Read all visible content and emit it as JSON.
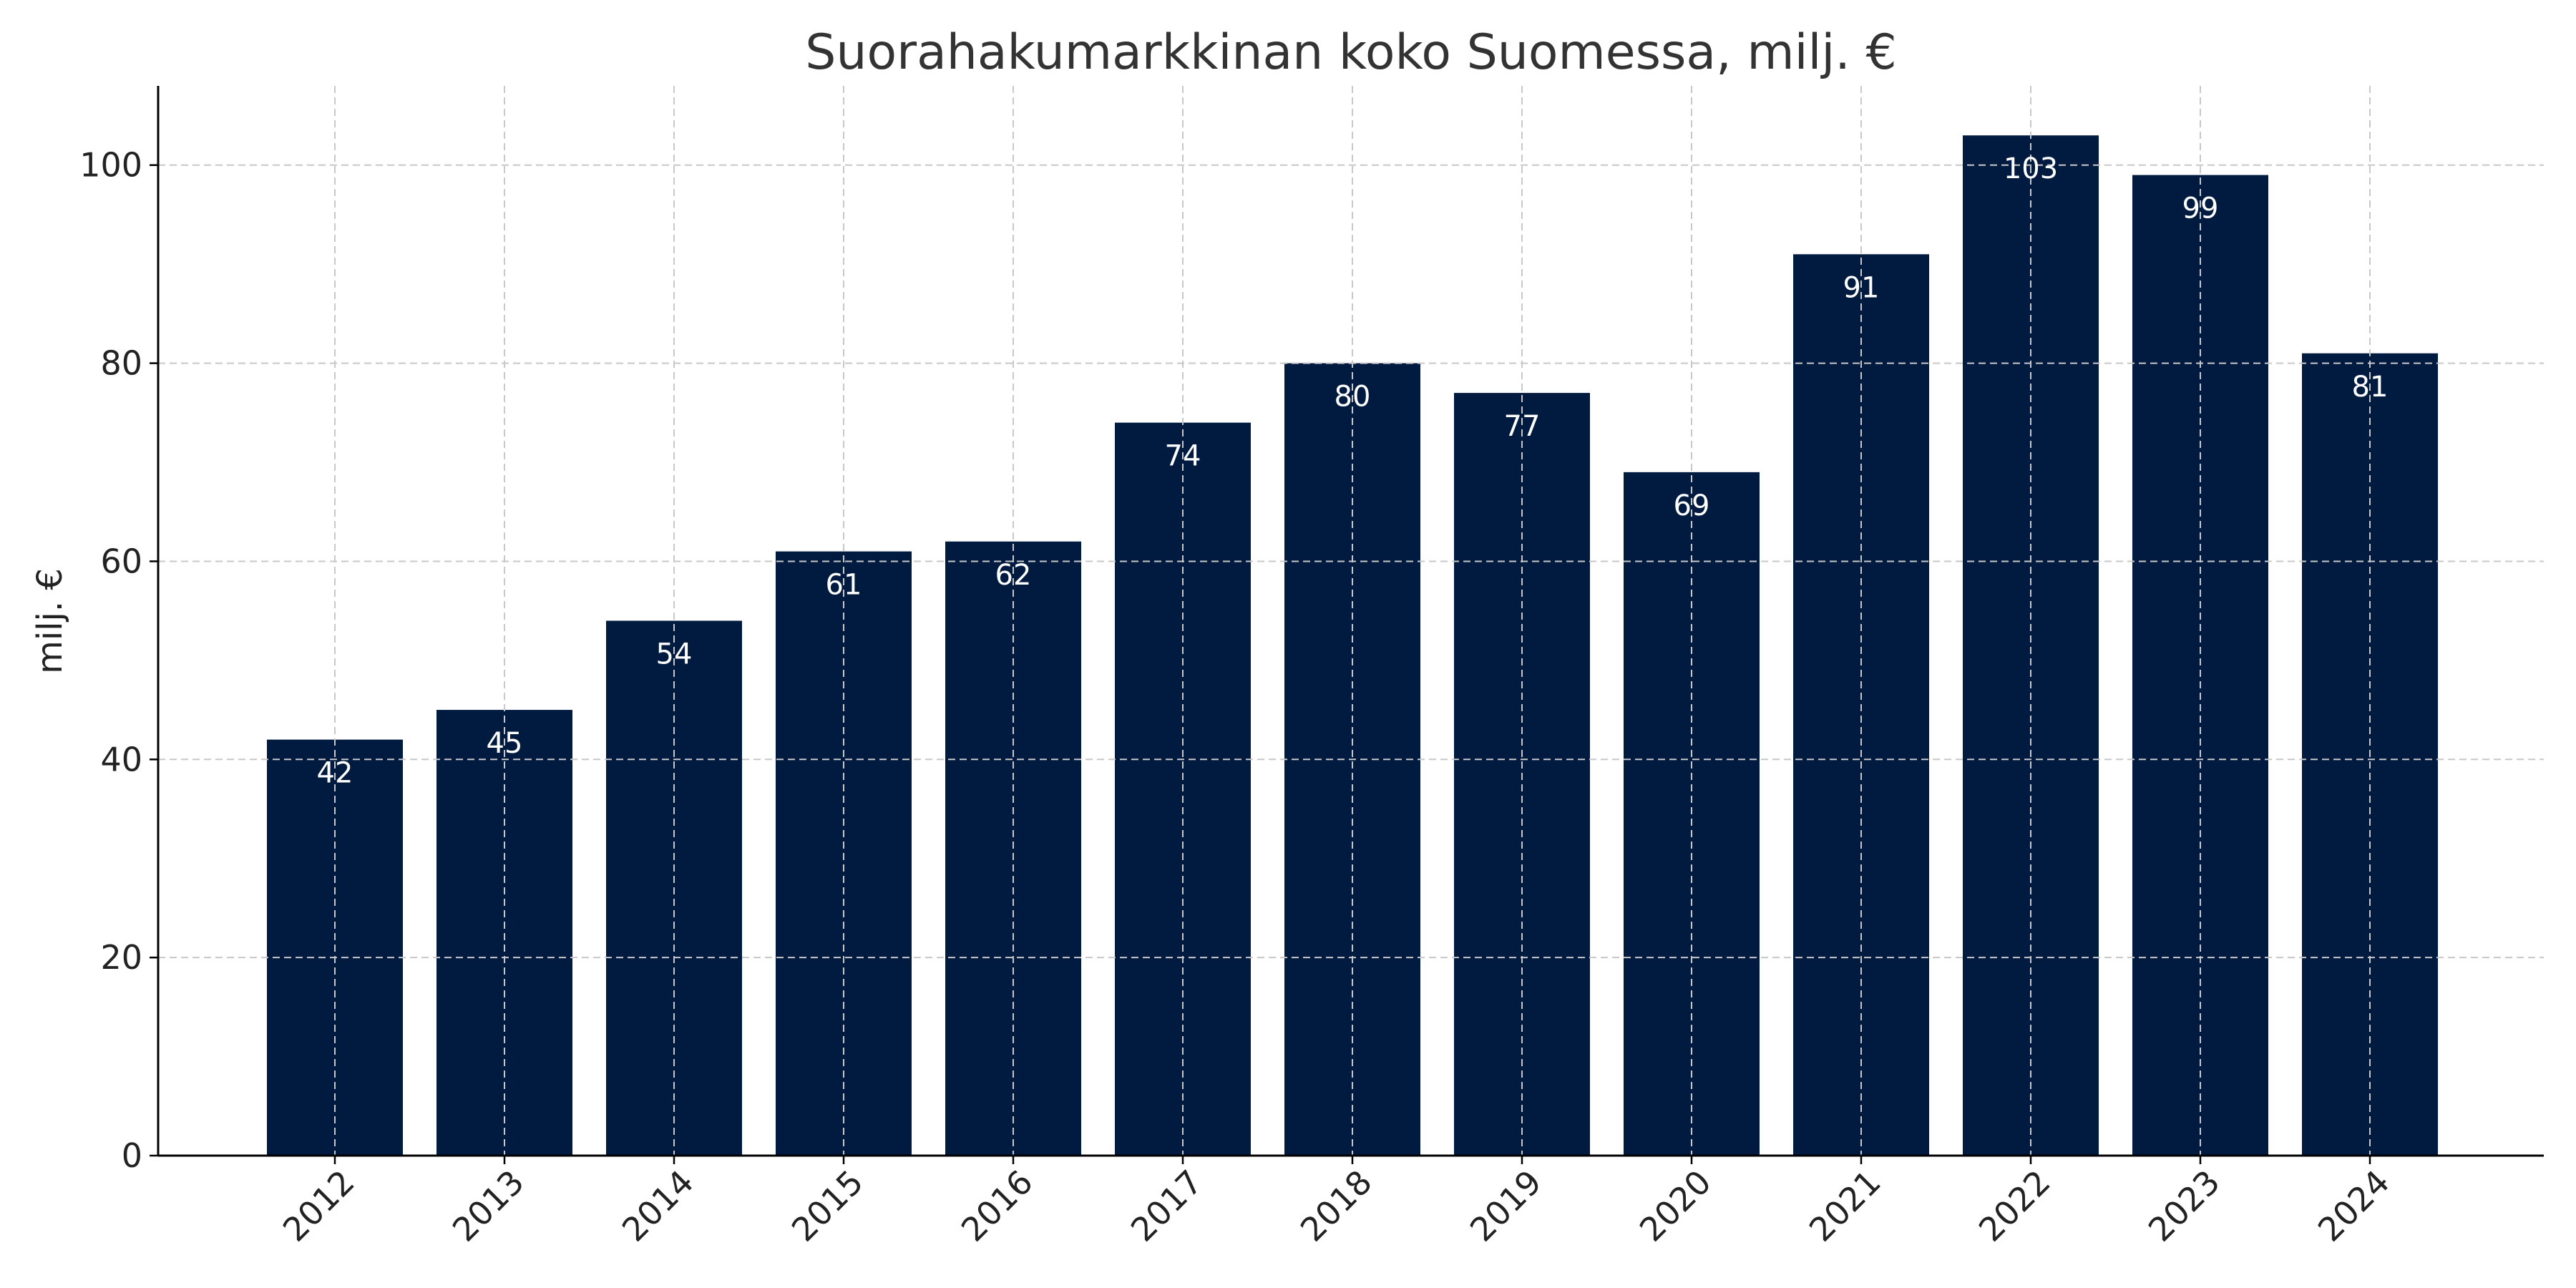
{
  "chart_data": {
    "type": "bar",
    "title": "Suorahakumarkkinan koko Suomessa, milj. €",
    "xlabel": "",
    "ylabel": "milj. €",
    "categories": [
      "2012",
      "2013",
      "2014",
      "2015",
      "2016",
      "2017",
      "2018",
      "2019",
      "2020",
      "2021",
      "2022",
      "2023",
      "2024"
    ],
    "values": [
      42,
      45,
      54,
      61,
      62,
      74,
      80,
      77,
      69,
      91,
      103,
      99,
      81
    ],
    "data_labels": [
      "42",
      "45",
      "54",
      "61",
      "62",
      "74",
      "80",
      "77",
      "69",
      "91",
      "103",
      "99",
      "81"
    ],
    "ylim": [
      0,
      108
    ],
    "yticks": [
      0,
      20,
      40,
      60,
      80,
      100
    ],
    "ytick_labels": [
      "0",
      "20",
      "40",
      "60",
      "80",
      "100"
    ],
    "grid": true,
    "legend": false,
    "colors": {
      "bar": "#001a40",
      "grid": "#c8c8c8",
      "axis": "#000000",
      "label": "#ffffff"
    }
  }
}
